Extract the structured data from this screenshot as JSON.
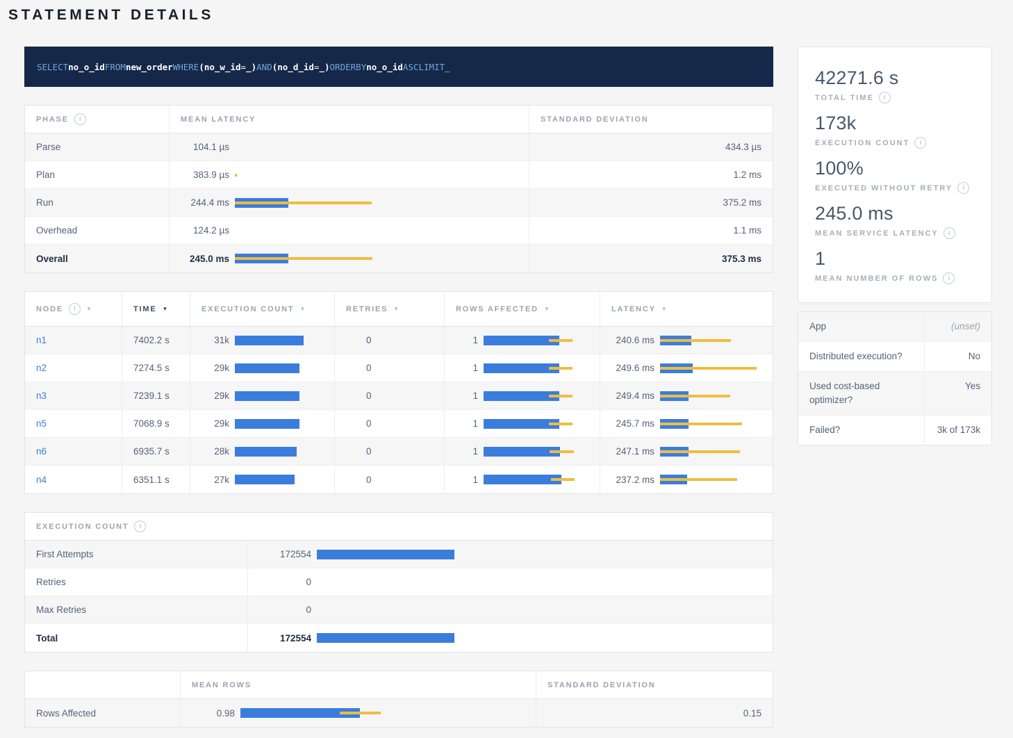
{
  "page": {
    "title": "STATEMENT DETAILS"
  },
  "colors": {
    "bar_blue": "#3b7ddd",
    "bar_yellow": "#eebd42",
    "sql_bg": "#152849",
    "sql_keyword": "#6fa8dc",
    "link_blue": "#3b7dd8"
  },
  "sql": {
    "tokens": [
      {
        "text": "SELECT",
        "type": "kw"
      },
      {
        "text": "no_o_id",
        "type": "id"
      },
      {
        "text": "FROM",
        "type": "kw"
      },
      {
        "text": "new_order",
        "type": "id"
      },
      {
        "text": "WHERE",
        "type": "kw"
      },
      {
        "text": "(no_w_id",
        "type": "id"
      },
      {
        "text": "=",
        "type": "op"
      },
      {
        "text": "_)",
        "type": "id"
      },
      {
        "text": "AND",
        "type": "kw"
      },
      {
        "text": "(no_d_id",
        "type": "id"
      },
      {
        "text": "=",
        "type": "op"
      },
      {
        "text": "_)",
        "type": "id"
      },
      {
        "text": "ORDER",
        "type": "kw"
      },
      {
        "text": "BY",
        "type": "kw"
      },
      {
        "text": "no_o_id",
        "type": "id"
      },
      {
        "text": "ASC",
        "type": "kw"
      },
      {
        "text": "LIMIT",
        "type": "kw"
      },
      {
        "text": "_",
        "type": "op"
      }
    ]
  },
  "phase_table": {
    "col_phase": "PHASE",
    "col_mean_latency": "MEAN LATENCY",
    "col_std_dev": "STANDARD DEVIATION",
    "rows": [
      {
        "phase": "Parse",
        "mean": "104.1 µs",
        "std": "434.3 µs",
        "bar": 0,
        "dev": null,
        "strong": false
      },
      {
        "phase": "Plan",
        "mean": "383.9 µs",
        "std": "1.2 ms",
        "bar": 0,
        "dev": [
          0,
          0.8
        ],
        "strong": false
      },
      {
        "phase": "Run",
        "mean": "244.4 ms",
        "std": "375.2 ms",
        "bar": 19,
        "dev": [
          0,
          48.5
        ],
        "strong": false
      },
      {
        "phase": "Overhead",
        "mean": "124.2 µs",
        "std": "1.1 ms",
        "bar": 0,
        "dev": null,
        "strong": false
      },
      {
        "phase": "Overall",
        "mean": "245.0 ms",
        "std": "375.3 ms",
        "bar": 19,
        "dev": [
          0,
          48.7
        ],
        "strong": true
      }
    ]
  },
  "node_table": {
    "col_node": "NODE",
    "col_time": "TIME",
    "col_exec": "EXECUTION COUNT",
    "col_retries": "RETRIES",
    "col_rows": "ROWS AFFECTED",
    "col_latency": "LATENCY",
    "rows": [
      {
        "node": "n1",
        "time": "7402.2 s",
        "exec": "31k",
        "exec_bar": 78,
        "retries": "0",
        "rows": "1",
        "rows_bar": 72,
        "rows_dev": [
          62,
          85
        ],
        "latency": "240.6 ms",
        "lat_bar": 31,
        "lat_dev": [
          0,
          70
        ]
      },
      {
        "node": "n2",
        "time": "7274.5 s",
        "exec": "29k",
        "exec_bar": 73,
        "retries": "0",
        "rows": "1",
        "rows_bar": 72,
        "rows_dev": [
          62,
          85
        ],
        "latency": "249.6 ms",
        "lat_bar": 32,
        "lat_dev": [
          0,
          95
        ]
      },
      {
        "node": "n3",
        "time": "7239.1 s",
        "exec": "29k",
        "exec_bar": 73,
        "retries": "0",
        "rows": "1",
        "rows_bar": 72,
        "rows_dev": [
          62,
          85
        ],
        "latency": "249.4 ms",
        "lat_bar": 28,
        "lat_dev": [
          0,
          69
        ]
      },
      {
        "node": "n5",
        "time": "7068.9 s",
        "exec": "29k",
        "exec_bar": 73,
        "retries": "0",
        "rows": "1",
        "rows_bar": 72,
        "rows_dev": [
          62,
          85
        ],
        "latency": "245.7 ms",
        "lat_bar": 28,
        "lat_dev": [
          0,
          81
        ]
      },
      {
        "node": "n6",
        "time": "6935.7 s",
        "exec": "28k",
        "exec_bar": 70,
        "retries": "0",
        "rows": "1",
        "rows_bar": 73,
        "rows_dev": [
          63,
          86
        ],
        "latency": "247.1 ms",
        "lat_bar": 28,
        "lat_dev": [
          0,
          79
        ]
      },
      {
        "node": "n4",
        "time": "6351.1 s",
        "exec": "27k",
        "exec_bar": 68,
        "retries": "0",
        "rows": "1",
        "rows_bar": 74,
        "rows_dev": [
          64,
          87
        ],
        "latency": "237.2 ms",
        "lat_bar": 27,
        "lat_dev": [
          0,
          76
        ]
      }
    ]
  },
  "execution_count_table": {
    "title": "EXECUTION COUNT",
    "rows": [
      {
        "label": "First Attempts",
        "value": "172554",
        "bar": 31,
        "strong": false
      },
      {
        "label": "Retries",
        "value": "0",
        "bar": 0,
        "strong": false
      },
      {
        "label": "Max Retries",
        "value": "0",
        "bar": 0,
        "strong": false
      },
      {
        "label": "Total",
        "value": "172554",
        "bar": 31,
        "strong": true
      }
    ]
  },
  "rows_affected_table": {
    "col_mean": "MEAN ROWS",
    "col_std": "STANDARD DEVIATION",
    "rows": [
      {
        "label": "Rows Affected",
        "mean": "0.98",
        "bar": 42,
        "dev": [
          35,
          49.5
        ],
        "std": "0.15"
      }
    ]
  },
  "summary_stats": [
    {
      "value": "42271.6 s",
      "label": "TOTAL TIME"
    },
    {
      "value": "173k",
      "label": "EXECUTION COUNT"
    },
    {
      "value": "100%",
      "label": "EXECUTED WITHOUT RETRY"
    },
    {
      "value": "245.0 ms",
      "label": "MEAN SERVICE LATENCY"
    },
    {
      "value": "1",
      "label": "MEAN NUMBER OF ROWS"
    }
  ],
  "details_panel": {
    "rows": [
      {
        "label": "App",
        "value": "(unset)",
        "muted": true
      },
      {
        "label": "Distributed execution?",
        "value": "No",
        "muted": false
      },
      {
        "label": "Used cost-based optimizer?",
        "value": "Yes",
        "muted": false
      },
      {
        "label": "Failed?",
        "value": "3k of 173k",
        "muted": false
      }
    ]
  }
}
